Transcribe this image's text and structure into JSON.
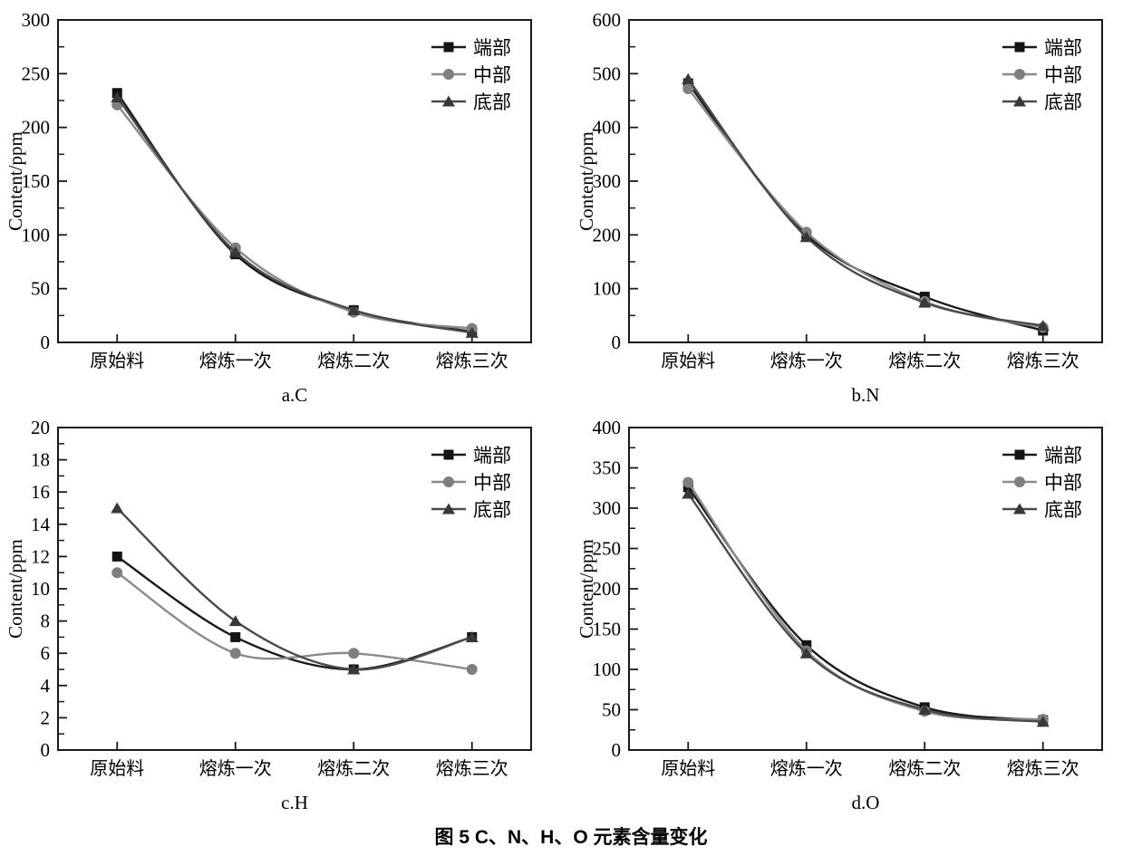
{
  "figure_caption": "图 5  C、N、H、O 元素含量变化",
  "ylabel": "Content/ppm",
  "categories": [
    "原始料",
    "熔炼一次",
    "熔炼二次",
    "熔炼三次"
  ],
  "legend": [
    "端部",
    "中部",
    "底部"
  ],
  "series_styles": [
    {
      "name": "端部",
      "marker": "square",
      "color": "#141414",
      "line_color": "#1a1a1a"
    },
    {
      "name": "中部",
      "marker": "circle",
      "color": "#7f7f7f",
      "line_color": "#8a8a8a"
    },
    {
      "name": "底部",
      "marker": "triangle",
      "color": "#383838",
      "line_color": "#4a4a4a"
    }
  ],
  "chart_data": [
    {
      "id": "a",
      "type": "line",
      "title": "a.C",
      "ylabel": "Content/ppm",
      "ylim": [
        0,
        300
      ],
      "ytick_step": 50,
      "grid": false,
      "legend_position": "top-right",
      "categories": [
        "原始料",
        "熔炼一次",
        "熔炼二次",
        "熔炼三次"
      ],
      "series": [
        {
          "name": "端部",
          "values": [
            232,
            82,
            30,
            10
          ]
        },
        {
          "name": "中部",
          "values": [
            221,
            88,
            28,
            13
          ]
        },
        {
          "name": "底部",
          "values": [
            228,
            84,
            30,
            9
          ]
        }
      ]
    },
    {
      "id": "b",
      "type": "line",
      "title": "b.N",
      "ylabel": "Content/ppm",
      "ylim": [
        0,
        600
      ],
      "ytick_step": 100,
      "grid": false,
      "legend_position": "top-right",
      "categories": [
        "原始料",
        "熔炼一次",
        "熔炼二次",
        "熔炼三次"
      ],
      "series": [
        {
          "name": "端部",
          "values": [
            482,
            200,
            85,
            22
          ]
        },
        {
          "name": "中部",
          "values": [
            472,
            205,
            76,
            28
          ]
        },
        {
          "name": "底部",
          "values": [
            490,
            196,
            74,
            31
          ]
        }
      ]
    },
    {
      "id": "c",
      "type": "line",
      "title": "c.H",
      "ylabel": "Content/ppm",
      "ylim": [
        0,
        20
      ],
      "ytick_step": 2,
      "grid": false,
      "legend_position": "top-right",
      "categories": [
        "原始料",
        "熔炼一次",
        "熔炼二次",
        "熔炼三次"
      ],
      "series": [
        {
          "name": "端部",
          "values": [
            12,
            7,
            5,
            7
          ]
        },
        {
          "name": "中部",
          "values": [
            11,
            6,
            6,
            5
          ]
        },
        {
          "name": "底部",
          "values": [
            15,
            8,
            5,
            7
          ]
        }
      ]
    },
    {
      "id": "d",
      "type": "line",
      "title": "d.O",
      "ylabel": "Content/ppm",
      "ylim": [
        0,
        400
      ],
      "ytick_step": 50,
      "grid": false,
      "legend_position": "top-right",
      "categories": [
        "原始料",
        "熔炼一次",
        "熔炼二次",
        "熔炼三次"
      ],
      "series": [
        {
          "name": "端部",
          "values": [
            326,
            130,
            53,
            37
          ]
        },
        {
          "name": "中部",
          "values": [
            332,
            123,
            48,
            38
          ]
        },
        {
          "name": "底部",
          "values": [
            318,
            120,
            50,
            35
          ]
        }
      ]
    }
  ]
}
